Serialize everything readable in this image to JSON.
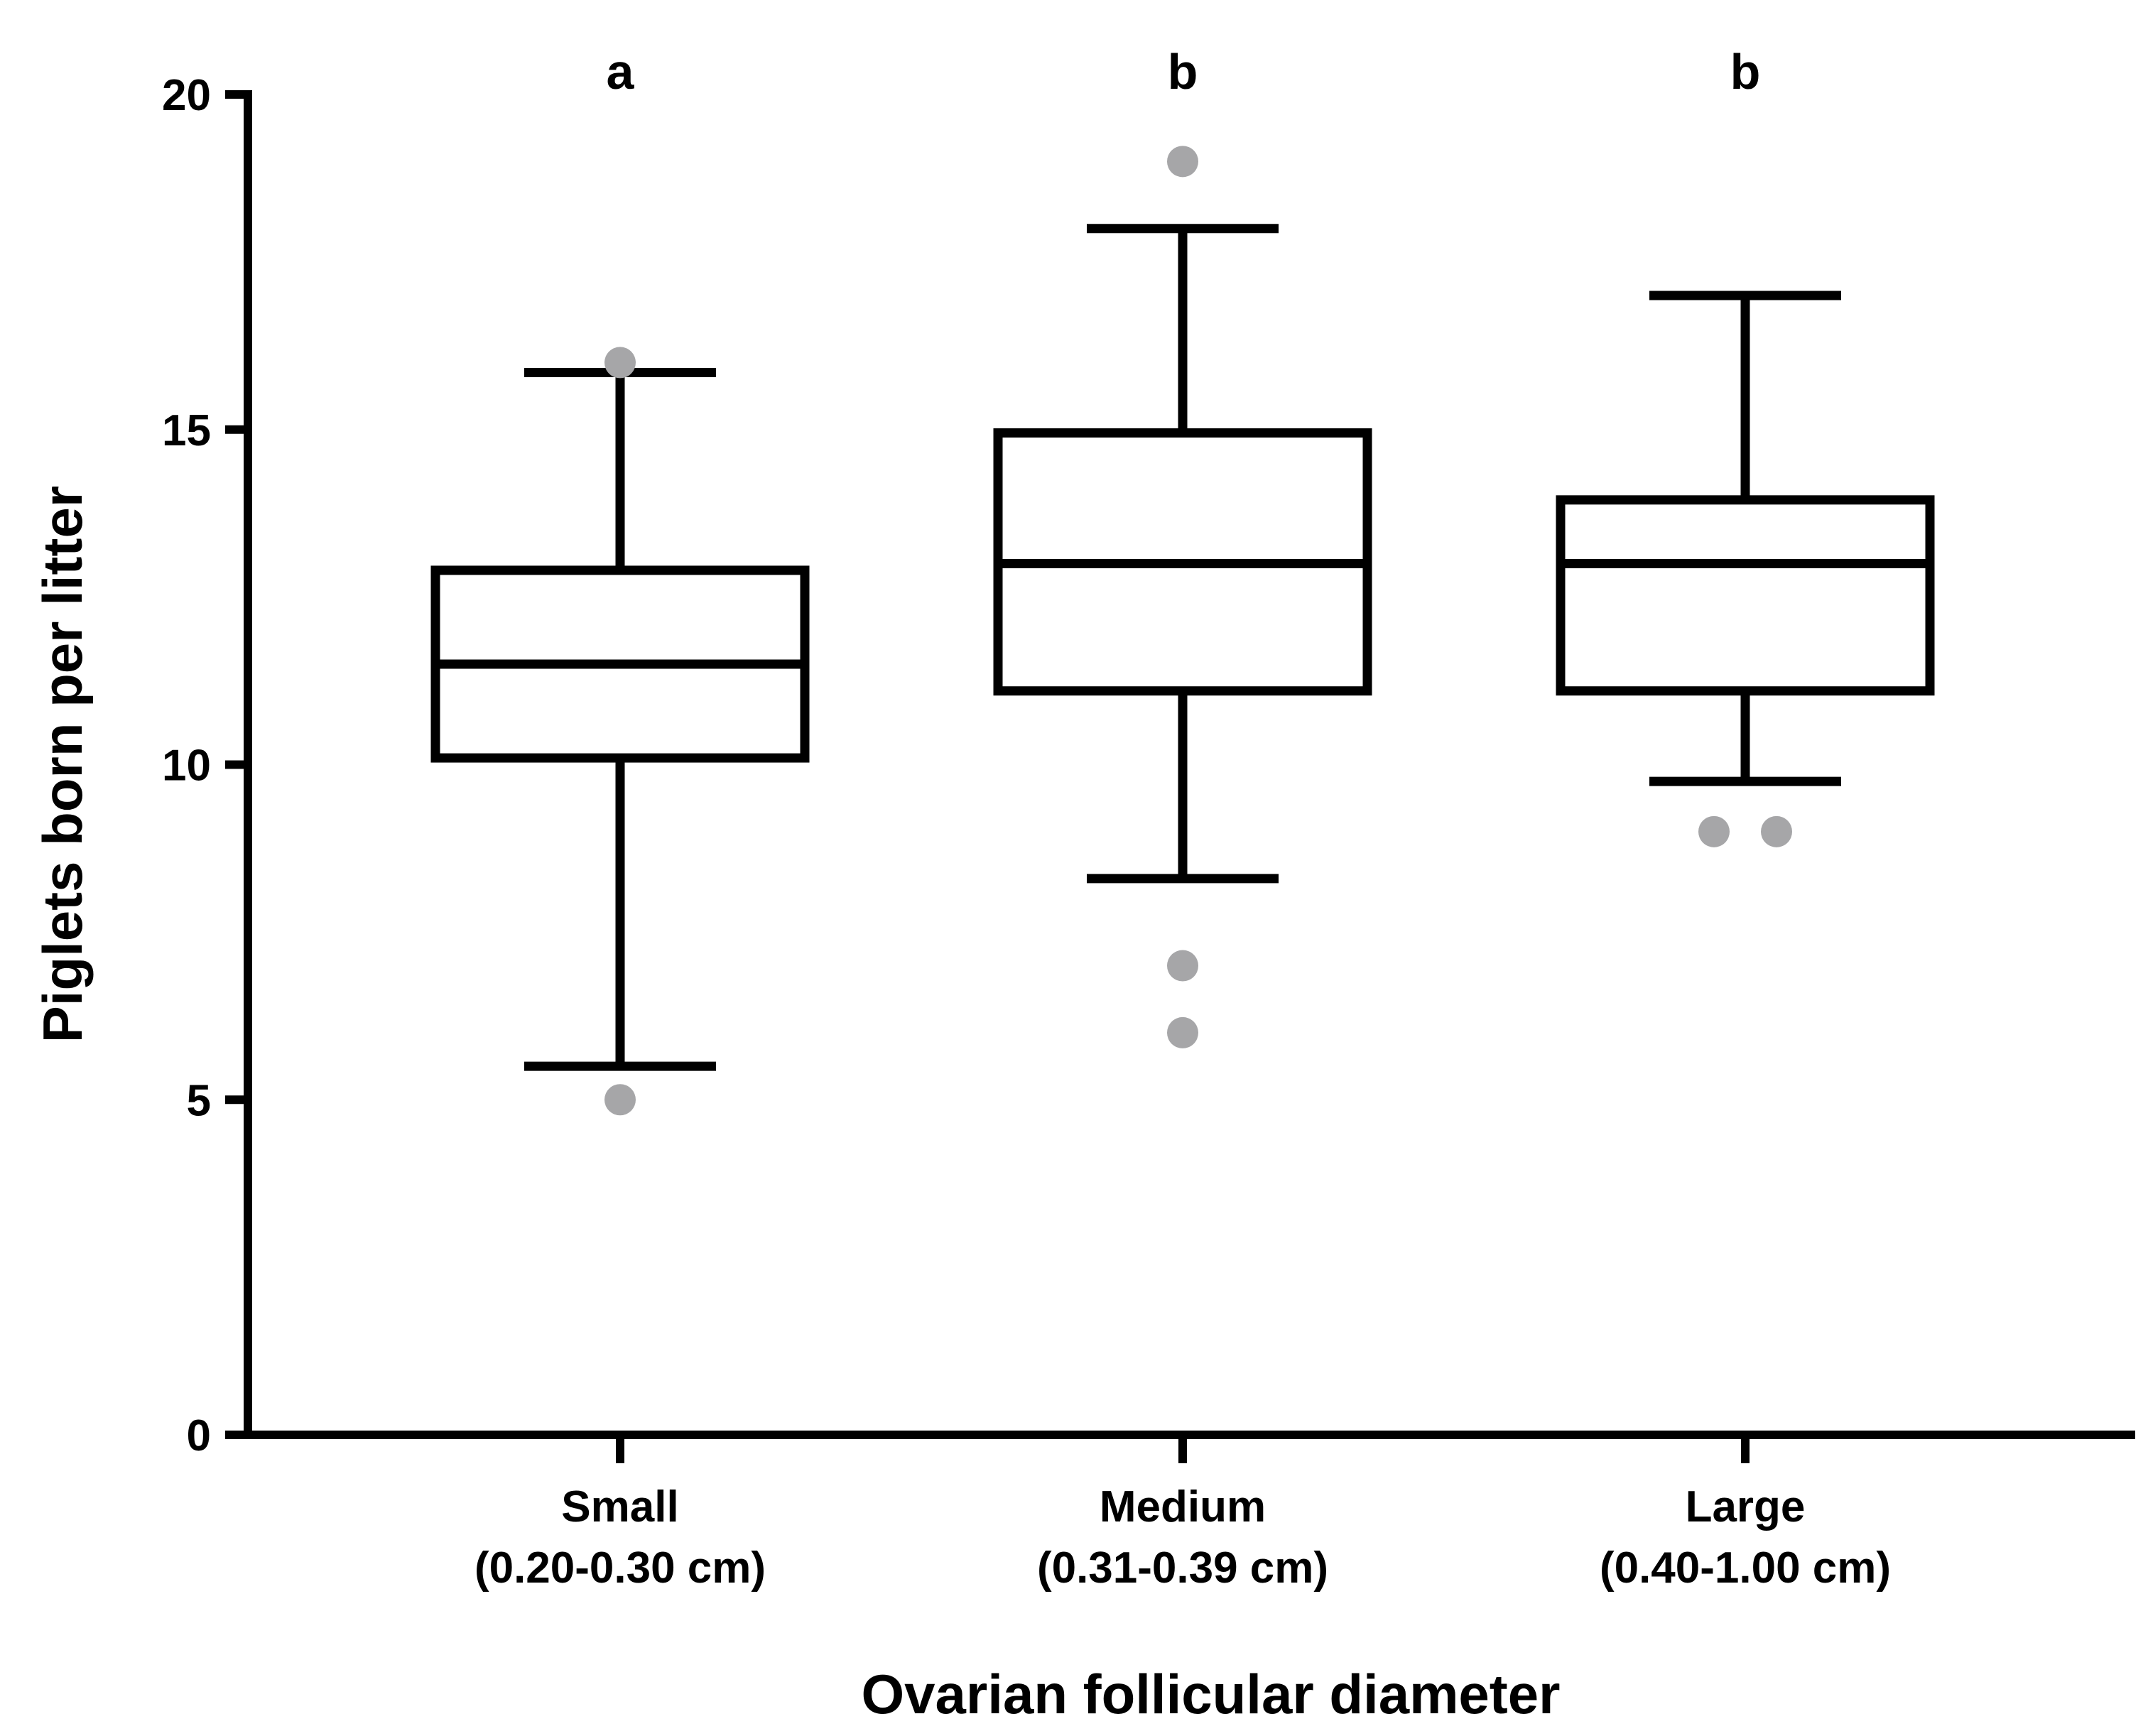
{
  "chart_data": {
    "type": "box",
    "title": "",
    "xlabel": "Ovarian follicular diameter",
    "ylabel": "Piglets born per litter",
    "ylim": [
      0,
      20
    ],
    "yticks": [
      0,
      5,
      10,
      15,
      20
    ],
    "categories": [
      {
        "name": "Small",
        "range": "(0.20-0.30 cm)"
      },
      {
        "name": "Medium",
        "range": "(0.31-0.39 cm)"
      },
      {
        "name": "Large",
        "range": "(0.40-1.00 cm)"
      }
    ],
    "groups": [
      {
        "category": "Small",
        "significance": "a",
        "whisker_low": 5.5,
        "q1": 10.1,
        "median": 11.5,
        "q3": 12.9,
        "whisker_high": 15.85,
        "outliers": [
          5,
          16
        ]
      },
      {
        "category": "Medium",
        "significance": "b",
        "whisker_low": 8.3,
        "q1": 11.1,
        "median": 13,
        "q3": 14.95,
        "whisker_high": 18,
        "outliers": [
          19,
          7,
          6
        ]
      },
      {
        "category": "Large",
        "significance": "b",
        "whisker_low": 9.75,
        "q1": 11.1,
        "median": 13,
        "q3": 13.95,
        "whisker_high": 17,
        "outliers": [
          9,
          9
        ]
      }
    ],
    "outlier_color": "#a6a6a8",
    "line_color": "#000000",
    "grid": false,
    "legend": "none"
  }
}
